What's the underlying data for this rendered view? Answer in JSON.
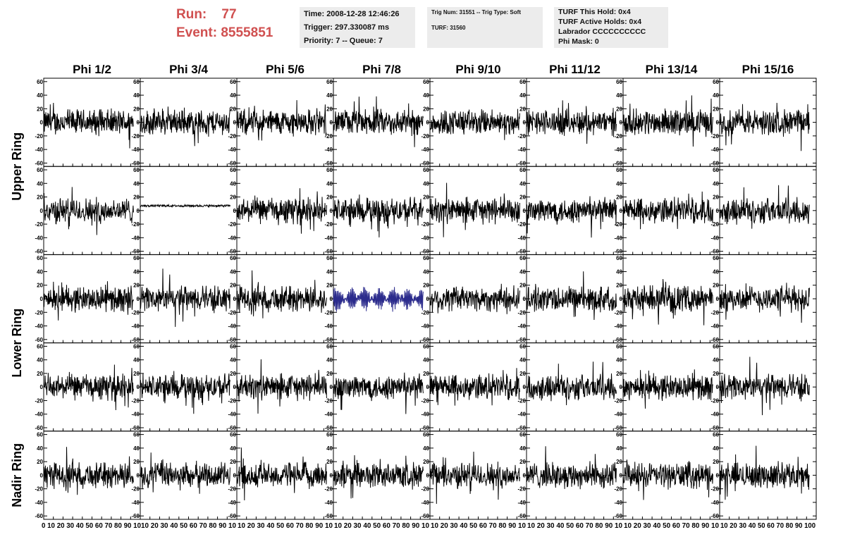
{
  "run_info": {
    "run_label": "Run:",
    "run_value": "77",
    "event_label": "Event:",
    "event_value": "8555851"
  },
  "info_panel_1": [
    "Time: 2008-12-28 12:46:26",
    "Trigger: 297.330087 ms",
    "Priority: 7 -- Queue: 7"
  ],
  "info_panel_2": [
    "Trig Num: 31551 -- Trig Type: Soft",
    "",
    "TURF: 31560"
  ],
  "info_panel_3": [
    "TURF This Hold: 0x4",
    "TURF Active Holds: 0x4",
    "Labrador CCCCCCCCCC",
    "Phi Mask: 0"
  ],
  "colors": {
    "trace": "#000000",
    "highlight_trace": "#2b2b8c",
    "run_text": "#d05050",
    "panel_bg": "#ececec"
  },
  "chart_data": {
    "type": "line",
    "title": "",
    "columns": [
      "Phi 1/2",
      "Phi 3/4",
      "Phi 5/6",
      "Phi 7/8",
      "Phi 9/10",
      "Phi 11/12",
      "Phi 13/14",
      "Phi 15/16"
    ],
    "row_labels": [
      "Upper Ring",
      "Lower Ring",
      "Nadir Ring"
    ],
    "panel_rows": 5,
    "xlim": [
      0,
      100
    ],
    "xticks": [
      0,
      10,
      20,
      30,
      40,
      50,
      60,
      70,
      80,
      90,
      100
    ],
    "x_tick_labels_first": "0 10 20 30 40 50 60 70 80 90 10",
    "x_tick_labels_mid": "10 20 30 40 50 60 70 80 90 10",
    "x_tick_labels_last": "10 20 30 40 50 60 70 80 90 100",
    "ylim": [
      -65,
      65
    ],
    "yticks": [
      -60,
      -40,
      -20,
      0,
      20,
      40,
      60
    ],
    "samples_per_trace": 260,
    "trace_span": [
      0,
      93
    ],
    "default_amplitude": 16,
    "flat_channel": {
      "row": 1,
      "col": 1,
      "offset": 7,
      "amplitude": 1.5
    },
    "highlighted_channel": {
      "row": 2,
      "col": 3,
      "amplitude": 16
    },
    "grid": false
  }
}
